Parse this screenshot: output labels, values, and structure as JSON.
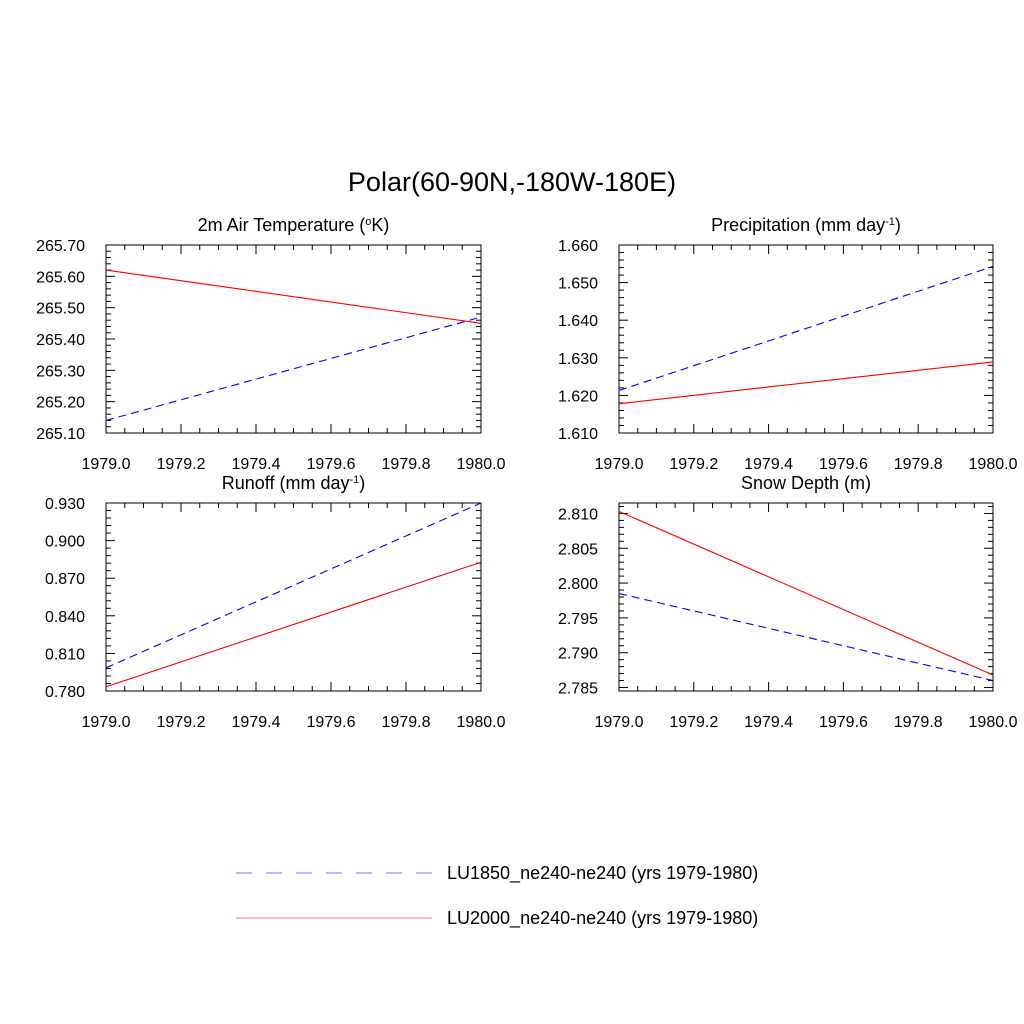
{
  "figure": {
    "title": "Polar(60-90N,-180W-180E)"
  },
  "legend": [
    {
      "label": "LU1850_ne240-ne240 (yrs 1979-1980)",
      "color": "#0000ff",
      "style": "dashed"
    },
    {
      "label": "LU2000_ne240-ne240 (yrs 1979-1980)",
      "color": "#ff0000",
      "style": "solid"
    }
  ],
  "chart_data": [
    {
      "type": "line",
      "title": "2m Air Temperature (oK)",
      "title_parts": [
        "2m Air Temperature (",
        "o",
        "K)"
      ],
      "xlim": [
        1979.0,
        1980.0
      ],
      "ylim": [
        265.1,
        265.7
      ],
      "xticks": [
        "1979.0",
        "1979.2",
        "1979.4",
        "1979.6",
        "1979.8",
        "1980.0"
      ],
      "yticks": [
        "265.10",
        "265.20",
        "265.30",
        "265.40",
        "265.50",
        "265.60",
        "265.70"
      ],
      "grid": false,
      "series": [
        {
          "name": "LU1850_ne240-ne240 (yrs 1979-1980)",
          "x": [
            1979.0,
            1980.0
          ],
          "y": [
            265.14,
            265.47
          ]
        },
        {
          "name": "LU2000_ne240-ne240 (yrs 1979-1980)",
          "x": [
            1979.0,
            1980.0
          ],
          "y": [
            265.62,
            265.45
          ]
        }
      ]
    },
    {
      "type": "line",
      "title": "Precipitation (mm day-1)",
      "title_parts": [
        "Precipitation (mm day",
        "-1",
        ")"
      ],
      "xlim": [
        1979.0,
        1980.0
      ],
      "ylim": [
        1.61,
        1.66
      ],
      "xticks": [
        "1979.0",
        "1979.2",
        "1979.4",
        "1979.6",
        "1979.8",
        "1980.0"
      ],
      "yticks": [
        "1.610",
        "1.620",
        "1.630",
        "1.640",
        "1.650",
        "1.660"
      ],
      "grid": false,
      "series": [
        {
          "name": "LU1850_ne240-ne240 (yrs 1979-1980)",
          "x": [
            1979.0,
            1980.0
          ],
          "y": [
            1.6213,
            1.6543
          ]
        },
        {
          "name": "LU2000_ne240-ne240 (yrs 1979-1980)",
          "x": [
            1979.0,
            1980.0
          ],
          "y": [
            1.6178,
            1.6289
          ]
        }
      ]
    },
    {
      "type": "line",
      "title": "Runoff (mm day-1)",
      "title_parts": [
        "Runoff (mm day",
        "-1",
        ")"
      ],
      "xlim": [
        1979.0,
        1980.0
      ],
      "ylim": [
        0.78,
        0.93
      ],
      "xticks": [
        "1979.0",
        "1979.2",
        "1979.4",
        "1979.6",
        "1979.8",
        "1980.0"
      ],
      "yticks": [
        "0.780",
        "0.810",
        "0.840",
        "0.870",
        "0.900",
        "0.930"
      ],
      "grid": false,
      "series": [
        {
          "name": "LU1850_ne240-ne240 (yrs 1979-1980)",
          "x": [
            1979.0,
            1980.0
          ],
          "y": [
            0.7985,
            0.93
          ]
        },
        {
          "name": "LU2000_ne240-ne240 (yrs 1979-1980)",
          "x": [
            1979.0,
            1980.0
          ],
          "y": [
            0.7834,
            0.8827
          ]
        }
      ]
    },
    {
      "type": "line",
      "title": "Snow Depth (m)",
      "title_parts": [
        "Snow Depth (m)",
        "",
        ""
      ],
      "xlim": [
        1979.0,
        1980.0
      ],
      "ylim": [
        2.7845,
        2.8115
      ],
      "xticks": [
        "1979.0",
        "1979.2",
        "1979.4",
        "1979.6",
        "1979.8",
        "1980.0"
      ],
      "yticks": [
        "2.785",
        "2.790",
        "2.795",
        "2.800",
        "2.805",
        "2.810"
      ],
      "grid": false,
      "series": [
        {
          "name": "LU1850_ne240-ne240 (yrs 1979-1980)",
          "x": [
            1979.0,
            1980.0
          ],
          "y": [
            2.7985,
            2.786
          ]
        },
        {
          "name": "LU2000_ne240-ne240 (yrs 1979-1980)",
          "x": [
            1979.0,
            1980.0
          ],
          "y": [
            2.8103,
            2.7868
          ]
        }
      ]
    }
  ]
}
